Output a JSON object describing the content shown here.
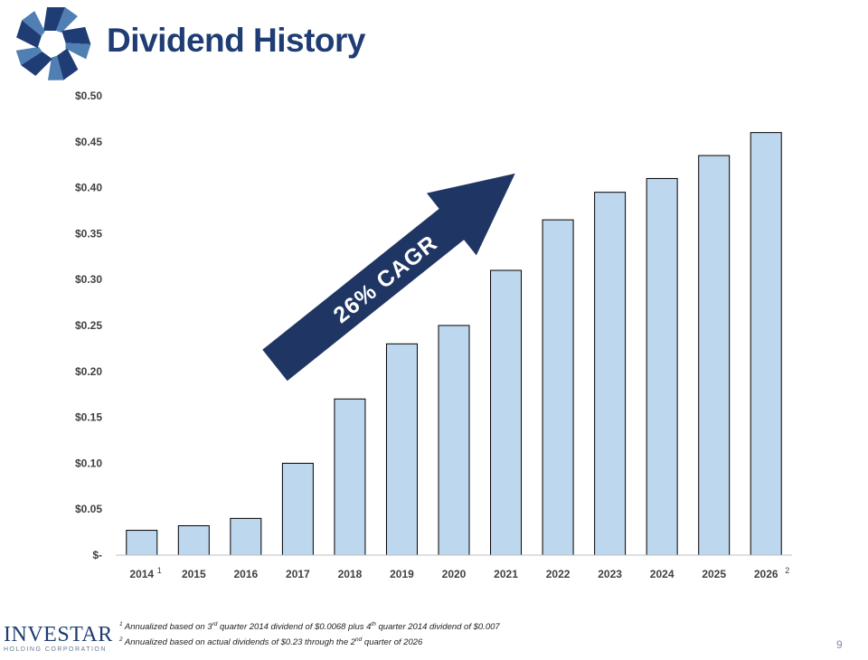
{
  "page": {
    "title": "Dividend History",
    "page_number": "9"
  },
  "brand": {
    "name": "INVESTAR",
    "subtitle": "HOLDING CORPORATION",
    "colors": {
      "navy": "#1f3c74",
      "light_blue": "#4f7fb3"
    }
  },
  "chart_data": {
    "type": "bar",
    "categories": [
      "2014",
      "2015",
      "2016",
      "2017",
      "2018",
      "2019",
      "2020",
      "2021",
      "2022",
      "2023",
      "2024",
      "2025",
      "2026"
    ],
    "category_footnotes": {
      "2014": "1",
      "2026": "2"
    },
    "values": [
      0.027,
      0.032,
      0.04,
      0.1,
      0.17,
      0.23,
      0.25,
      0.31,
      0.365,
      0.395,
      0.41,
      0.435,
      0.46
    ],
    "ylim": [
      0,
      0.5
    ],
    "yticks": [
      0,
      0.05,
      0.1,
      0.15,
      0.2,
      0.25,
      0.3,
      0.35,
      0.4,
      0.45,
      0.5
    ],
    "ytick_labels": [
      "$-",
      "$0.05",
      "$0.10",
      "$0.15",
      "$0.20",
      "$0.25",
      "$0.30",
      "$0.35",
      "$0.40",
      "$0.45",
      "$0.50"
    ],
    "annotation": "26% CAGR",
    "grid": false,
    "bar_color": "#bdd7ee",
    "bar_edge_color": "#000000",
    "arrow_color": "#1f3563"
  },
  "footnotes": [
    {
      "marker": "1",
      "parts": [
        "Annualized based on 3",
        "rd",
        " quarter 2014 dividend of $0.0068 plus 4",
        "th",
        " quarter 2014 dividend of $0.007"
      ]
    },
    {
      "marker": "2",
      "parts": [
        "Annualized based on actual dividends of $0.23 through the 2",
        "nd",
        " quarter of 2026"
      ]
    }
  ]
}
